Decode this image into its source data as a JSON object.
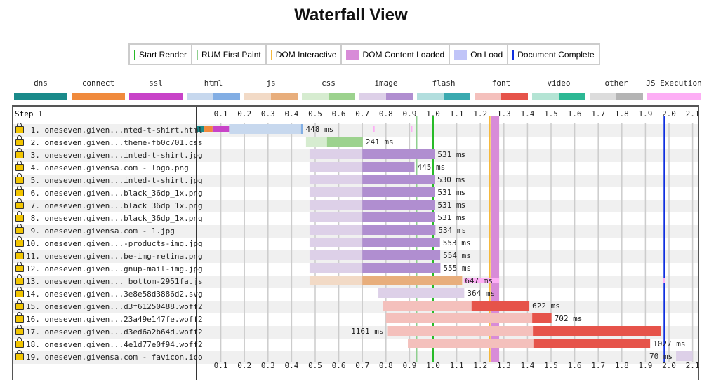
{
  "title": "Waterfall View",
  "legend": [
    {
      "label": "Start Render",
      "kind": "line",
      "color": "#28bb28"
    },
    {
      "label": "RUM First Paint",
      "kind": "line",
      "color": "#8fcf8f"
    },
    {
      "label": "DOM Interactive",
      "kind": "line",
      "color": "#f5b83c"
    },
    {
      "label": "DOM Content Loaded",
      "kind": "box",
      "color": "#d88bd8"
    },
    {
      "label": "On Load",
      "kind": "box",
      "color": "#c0c4f8"
    },
    {
      "label": "Document Complete",
      "kind": "line",
      "color": "#1030e0"
    }
  ],
  "types": [
    {
      "label": "dns",
      "light": "#1a8a8a",
      "dark": "#1a8a8a"
    },
    {
      "label": "connect",
      "light": "#f08a3c",
      "dark": "#f08a3c"
    },
    {
      "label": "ssl",
      "light": "#c843c8",
      "dark": "#c843c8"
    },
    {
      "label": "html",
      "light": "#c7d8ee",
      "dark": "#82aee4"
    },
    {
      "label": "js",
      "light": "#f2dac6",
      "dark": "#e8ae7c"
    },
    {
      "label": "css",
      "light": "#d6ecd0",
      "dark": "#9cd28e"
    },
    {
      "label": "image",
      "light": "#ddd0e8",
      "dark": "#b08ed0"
    },
    {
      "label": "flash",
      "light": "#b2dede",
      "dark": "#3aaab0"
    },
    {
      "label": "font",
      "light": "#f4c0bc",
      "dark": "#e6534a"
    },
    {
      "label": "video",
      "light": "#b4e4d4",
      "dark": "#2cb894"
    },
    {
      "label": "other",
      "light": "#dcdcdc",
      "dark": "#b4b4b4"
    },
    {
      "label": "JS Execution",
      "light": "#fdaef5",
      "dark": "#fdaef5"
    }
  ],
  "step_label": "Step_1",
  "chart_data": {
    "type": "waterfall",
    "xlim": [
      0,
      2.1
    ],
    "ticks": [
      "0.1",
      "0.2",
      "0.3",
      "0.4",
      "0.5",
      "0.6",
      "0.7",
      "0.8",
      "0.9",
      "1.0",
      "1.1",
      "1.2",
      "1.3",
      "1.4",
      "1.5",
      "1.6",
      "1.7",
      "1.8",
      "1.9",
      "2.0",
      "2.1"
    ],
    "grid": true,
    "events": {
      "rum_first_paint": 0.93,
      "start_render": 1.0,
      "dom_interactive": 1.24,
      "dom_content_loaded": [
        1.245,
        1.28
      ],
      "document_complete": 1.98
    },
    "requests": [
      {
        "label": "1. oneseven.given...nted-t-shirt.html",
        "type": "html",
        "start": 0,
        "dns": [
          0,
          0.03
        ],
        "connect": [
          0.03,
          0.065
        ],
        "ssl": [
          0.065,
          0.135
        ],
        "ttfb_end": 0.44,
        "end": 0.448,
        "ms": "448 ms",
        "js_exec": [
          [
            0.745,
            0.752
          ],
          [
            0.905,
            0.912
          ]
        ]
      },
      {
        "label": "2. oneseven.given...theme-fb0c701.css",
        "type": "css",
        "start": 0.461,
        "ttfb_end": 0.55,
        "end": 0.702,
        "ms": "241 ms"
      },
      {
        "label": "3. oneseven.given...inted-t-shirt.jpg",
        "type": "image",
        "start": 0.476,
        "ttfb_end": 0.7,
        "end": 1.007,
        "ms": "531 ms"
      },
      {
        "label": "4. oneseven.givensa.com - logo.png",
        "type": "image",
        "start": 0.476,
        "ttfb_end": 0.7,
        "end": 0.921,
        "ms": "445 ms"
      },
      {
        "label": "5. oneseven.given...inted-t-shirt.jpg",
        "type": "image",
        "start": 0.476,
        "ttfb_end": 0.7,
        "end": 1.006,
        "ms": "530 ms"
      },
      {
        "label": "6. oneseven.given...black_36dp_1x.png",
        "type": "image",
        "start": 0.476,
        "ttfb_end": 0.7,
        "end": 1.007,
        "ms": "531 ms"
      },
      {
        "label": "7. oneseven.given...black_36dp_1x.png",
        "type": "image",
        "start": 0.476,
        "ttfb_end": 0.7,
        "end": 1.007,
        "ms": "531 ms"
      },
      {
        "label": "8. oneseven.given...black_36dp_1x.png",
        "type": "image",
        "start": 0.476,
        "ttfb_end": 0.7,
        "end": 1.007,
        "ms": "531 ms"
      },
      {
        "label": "9. oneseven.givensa.com - 1.jpg",
        "type": "image",
        "start": 0.476,
        "ttfb_end": 0.7,
        "end": 1.01,
        "ms": "534 ms"
      },
      {
        "label": "10. oneseven.given...-products-img.jpg",
        "type": "image",
        "start": 0.476,
        "ttfb_end": 0.7,
        "end": 1.029,
        "ms": "553 ms"
      },
      {
        "label": "11. oneseven.given...be-img-retina.png",
        "type": "image",
        "start": 0.476,
        "ttfb_end": 0.7,
        "end": 1.03,
        "ms": "554 ms"
      },
      {
        "label": "12. oneseven.given...gnup-mail-img.jpg",
        "type": "image",
        "start": 0.476,
        "ttfb_end": 0.7,
        "end": 1.031,
        "ms": "555 ms"
      },
      {
        "label": "13. oneseven.given... bottom-2951fa.js",
        "type": "js",
        "start": 0.476,
        "ttfb_end": 0.7,
        "end": 1.123,
        "ms": "647 ms",
        "js_exec": [
          [
            1.13,
            1.28
          ],
          [
            1.975,
            1.985
          ]
        ]
      },
      {
        "label": "14. oneseven.given...3e8e58d3886d2.svg",
        "type": "image",
        "start": 0.768,
        "ttfb_end": 1.132,
        "end": 1.132,
        "ms": "364 ms"
      },
      {
        "label": "15. oneseven.given...d3f61250488.woff2",
        "type": "font",
        "start": 0.786,
        "ttfb_end": 1.163,
        "end": 1.408,
        "ms": "622 ms"
      },
      {
        "label": "16. oneseven.given...23a49e147fe.woff2",
        "type": "font",
        "start": 0.8,
        "ttfb_end": 1.42,
        "end": 1.502,
        "ms": "702 ms"
      },
      {
        "label": "17. oneseven.given...d3ed6a2b64d.woff2",
        "type": "font",
        "start": 0.805,
        "ttfb_end": 1.423,
        "end": 1.966,
        "ms": "1161 ms",
        "ms_left": true
      },
      {
        "label": "18. oneseven.given...4e1d77e0f94.woff2",
        "type": "font",
        "start": 0.893,
        "ttfb_end": 1.425,
        "end": 1.92,
        "ms": "1027 ms"
      },
      {
        "label": "19. oneseven.givensa.com - favicon.ico",
        "type": "image",
        "start": 2.03,
        "ttfb_end": 2.1,
        "end": 2.1,
        "ms": "70 ms",
        "ms_left": true
      }
    ]
  }
}
